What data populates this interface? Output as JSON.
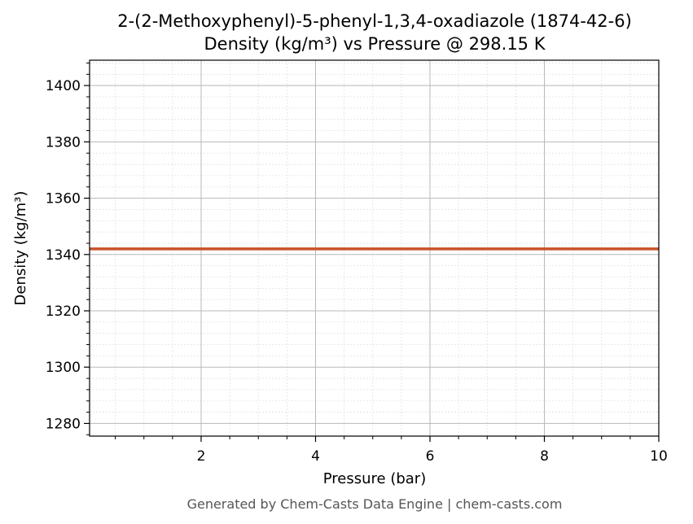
{
  "chart_data": {
    "type": "line",
    "title_line1": "2-(2-Methoxyphenyl)-5-phenyl-1,3,4-oxadiazole (1874-42-6)",
    "title_line2": "Density (kg/m³) vs Pressure @ 298.15 K",
    "xlabel": "Pressure (bar)",
    "ylabel": "Density (kg/m³)",
    "xlim": [
      0.05,
      10
    ],
    "ylim": [
      1275.5,
      1409
    ],
    "x_ticks": [
      2,
      4,
      6,
      8,
      10
    ],
    "y_ticks": [
      1280,
      1300,
      1320,
      1340,
      1360,
      1380,
      1400
    ],
    "grid": true,
    "series": [
      {
        "color": "#c8522a",
        "x": [
          0.05,
          1,
          2,
          3,
          4,
          5,
          6,
          7,
          8,
          9,
          10
        ],
        "values": [
          1342,
          1342,
          1342,
          1342,
          1342,
          1342,
          1342,
          1342,
          1342,
          1342,
          1342
        ]
      }
    ]
  },
  "footer": "Generated by Chem-Casts Data Engine | chem-casts.com"
}
